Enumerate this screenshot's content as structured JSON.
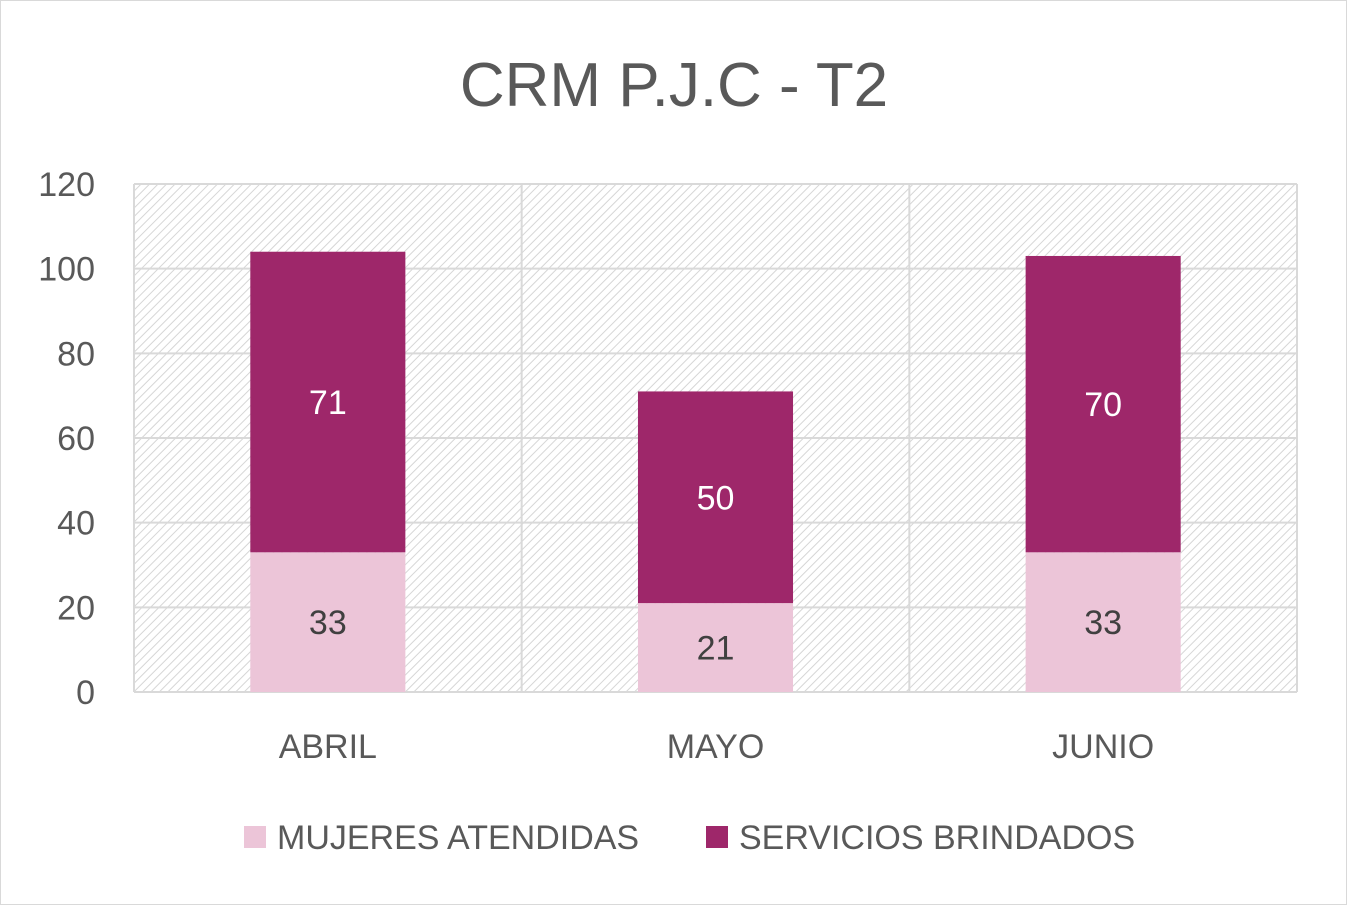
{
  "chart_data": {
    "type": "bar",
    "stacked": true,
    "title": "CRM P.J.C - T2",
    "xlabel": "",
    "ylabel": "",
    "ylim": [
      0,
      120
    ],
    "yticks": [
      0,
      20,
      40,
      60,
      80,
      100,
      120
    ],
    "categories": [
      "ABRIL",
      "MAYO",
      "JUNIO"
    ],
    "series": [
      {
        "name": "MUJERES ATENDIDAS",
        "values": [
          33,
          21,
          33
        ],
        "color": "#ecc5d8",
        "label_color": "#404040"
      },
      {
        "name": "SERVICIOS BRINDADOS",
        "values": [
          71,
          50,
          70
        ],
        "color": "#9e276a",
        "label_color": "#ffffff"
      }
    ],
    "grid": true,
    "plot_background": "hatched-gray",
    "legend_position": "bottom",
    "data_labels": true
  }
}
